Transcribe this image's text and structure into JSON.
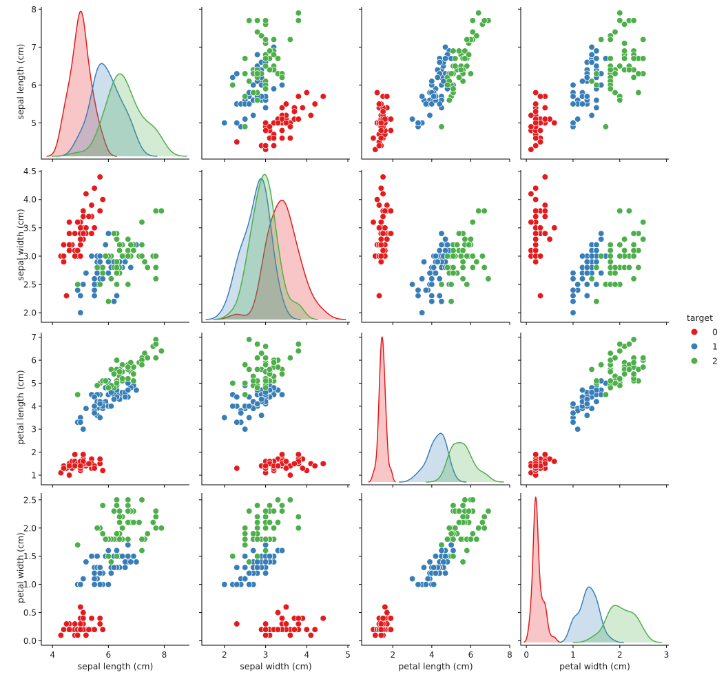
{
  "chart_data": {
    "type": "scatter",
    "title": "",
    "variables": [
      "sepal length (cm)",
      "sepal width (cm)",
      "petal length (cm)",
      "petal width (cm)"
    ],
    "diagonal": "kde",
    "hue": "target",
    "legend": {
      "title": "target",
      "placement": "right",
      "entries": [
        "0",
        "1",
        "2"
      ]
    },
    "palette": {
      "0": "#e41a1c",
      "1": "#377eb8",
      "2": "#4daf4a"
    },
    "axis_ranges": {
      "sepal length (cm)": [
        3.6,
        8.9
      ],
      "sepal width (cm)": [
        1.45,
        5.05
      ],
      "petal length (cm)": [
        0.4,
        8.0
      ],
      "petal width (cm)": [
        -0.12,
        3.05
      ]
    },
    "y_ranges": {
      "sepal length (cm)": [
        4.12,
        8.06
      ],
      "sepal width (cm)": [
        1.88,
        4.52
      ],
      "petal length (cm)": [
        0.7,
        7.2
      ],
      "petal width (cm)": [
        -0.03,
        2.62
      ]
    },
    "ticks": {
      "sepal length (cm)": {
        "x": [
          "4",
          "6",
          "8"
        ],
        "y": [
          "5",
          "6",
          "7",
          "8"
        ]
      },
      "sepal width (cm)": {
        "x": [
          "2",
          "3",
          "4",
          "5"
        ],
        "y": [
          "2.0",
          "2.5",
          "3.0",
          "3.5",
          "4.0",
          "4.5"
        ]
      },
      "petal length (cm)": {
        "x": [
          "2",
          "4",
          "6",
          "8"
        ],
        "y": [
          "1",
          "2",
          "3",
          "4",
          "5",
          "6",
          "7"
        ]
      },
      "petal width (cm)": {
        "x": [
          "0",
          "1",
          "2",
          "3"
        ],
        "y": [
          "0.0",
          "0.5",
          "1.0",
          "1.5",
          "2.0",
          "2.5"
        ]
      }
    },
    "series": [
      {
        "name": "0",
        "rows": [
          [
            5.1,
            3.5,
            1.4,
            0.2
          ],
          [
            4.9,
            3.0,
            1.4,
            0.2
          ],
          [
            4.7,
            3.2,
            1.3,
            0.2
          ],
          [
            4.6,
            3.1,
            1.5,
            0.2
          ],
          [
            5.0,
            3.6,
            1.4,
            0.2
          ],
          [
            5.4,
            3.9,
            1.7,
            0.4
          ],
          [
            4.6,
            3.4,
            1.4,
            0.3
          ],
          [
            5.0,
            3.4,
            1.5,
            0.2
          ],
          [
            4.4,
            2.9,
            1.4,
            0.2
          ],
          [
            4.9,
            3.1,
            1.5,
            0.1
          ],
          [
            5.4,
            3.7,
            1.5,
            0.2
          ],
          [
            4.8,
            3.4,
            1.6,
            0.2
          ],
          [
            4.8,
            3.0,
            1.4,
            0.1
          ],
          [
            4.3,
            3.0,
            1.1,
            0.1
          ],
          [
            5.8,
            4.0,
            1.2,
            0.2
          ],
          [
            5.7,
            4.4,
            1.5,
            0.4
          ],
          [
            5.4,
            3.9,
            1.3,
            0.4
          ],
          [
            5.1,
            3.5,
            1.4,
            0.3
          ],
          [
            5.7,
            3.8,
            1.7,
            0.3
          ],
          [
            5.1,
            3.8,
            1.5,
            0.3
          ],
          [
            5.4,
            3.4,
            1.7,
            0.2
          ],
          [
            5.1,
            3.7,
            1.5,
            0.4
          ],
          [
            4.6,
            3.6,
            1.0,
            0.2
          ],
          [
            5.1,
            3.3,
            1.7,
            0.5
          ],
          [
            4.8,
            3.4,
            1.9,
            0.2
          ],
          [
            5.0,
            3.0,
            1.6,
            0.2
          ],
          [
            5.0,
            3.4,
            1.6,
            0.4
          ],
          [
            5.2,
            3.5,
            1.5,
            0.2
          ],
          [
            5.2,
            3.4,
            1.4,
            0.2
          ],
          [
            4.7,
            3.2,
            1.6,
            0.2
          ],
          [
            4.8,
            3.1,
            1.6,
            0.2
          ],
          [
            5.4,
            3.4,
            1.5,
            0.4
          ],
          [
            5.2,
            4.1,
            1.5,
            0.1
          ],
          [
            5.5,
            4.2,
            1.4,
            0.2
          ],
          [
            4.9,
            3.1,
            1.5,
            0.2
          ],
          [
            5.0,
            3.2,
            1.2,
            0.2
          ],
          [
            5.5,
            3.5,
            1.3,
            0.2
          ],
          [
            4.9,
            3.6,
            1.4,
            0.1
          ],
          [
            4.4,
            3.0,
            1.3,
            0.2
          ],
          [
            5.1,
            3.4,
            1.5,
            0.2
          ],
          [
            5.0,
            3.5,
            1.3,
            0.3
          ],
          [
            4.5,
            2.3,
            1.3,
            0.3
          ],
          [
            4.4,
            3.2,
            1.3,
            0.2
          ],
          [
            5.0,
            3.5,
            1.6,
            0.6
          ],
          [
            5.1,
            3.8,
            1.9,
            0.4
          ],
          [
            4.8,
            3.0,
            1.4,
            0.3
          ],
          [
            5.1,
            3.8,
            1.6,
            0.2
          ],
          [
            4.6,
            3.2,
            1.4,
            0.2
          ],
          [
            5.3,
            3.7,
            1.5,
            0.2
          ],
          [
            5.0,
            3.3,
            1.4,
            0.2
          ]
        ]
      },
      {
        "name": "1",
        "rows": [
          [
            7.0,
            3.2,
            4.7,
            1.4
          ],
          [
            6.4,
            3.2,
            4.5,
            1.5
          ],
          [
            6.9,
            3.1,
            4.9,
            1.5
          ],
          [
            5.5,
            2.3,
            4.0,
            1.3
          ],
          [
            6.5,
            2.8,
            4.6,
            1.5
          ],
          [
            5.7,
            2.8,
            4.5,
            1.3
          ],
          [
            6.3,
            3.3,
            4.7,
            1.6
          ],
          [
            4.9,
            2.4,
            3.3,
            1.0
          ],
          [
            6.6,
            2.9,
            4.6,
            1.3
          ],
          [
            5.2,
            2.7,
            3.9,
            1.4
          ],
          [
            5.0,
            2.0,
            3.5,
            1.0
          ],
          [
            5.9,
            3.0,
            4.2,
            1.5
          ],
          [
            6.0,
            2.2,
            4.0,
            1.0
          ],
          [
            6.1,
            2.9,
            4.7,
            1.4
          ],
          [
            5.6,
            2.9,
            3.6,
            1.3
          ],
          [
            6.7,
            3.1,
            4.4,
            1.4
          ],
          [
            5.6,
            3.0,
            4.5,
            1.5
          ],
          [
            5.8,
            2.7,
            4.1,
            1.0
          ],
          [
            6.2,
            2.2,
            4.5,
            1.5
          ],
          [
            5.6,
            2.5,
            3.9,
            1.1
          ],
          [
            5.9,
            3.2,
            4.8,
            1.8
          ],
          [
            6.1,
            2.8,
            4.0,
            1.3
          ],
          [
            6.3,
            2.5,
            4.9,
            1.5
          ],
          [
            6.1,
            2.8,
            4.7,
            1.2
          ],
          [
            6.4,
            2.9,
            4.3,
            1.3
          ],
          [
            6.6,
            3.0,
            4.4,
            1.4
          ],
          [
            6.8,
            2.8,
            4.8,
            1.4
          ],
          [
            6.7,
            3.0,
            5.0,
            1.7
          ],
          [
            6.0,
            2.9,
            4.5,
            1.5
          ],
          [
            5.7,
            2.6,
            3.5,
            1.0
          ],
          [
            5.5,
            2.4,
            3.8,
            1.1
          ],
          [
            5.5,
            2.4,
            3.7,
            1.0
          ],
          [
            5.8,
            2.7,
            3.9,
            1.2
          ],
          [
            6.0,
            2.7,
            5.1,
            1.6
          ],
          [
            5.4,
            3.0,
            4.5,
            1.5
          ],
          [
            6.0,
            3.4,
            4.5,
            1.6
          ],
          [
            6.7,
            3.1,
            4.7,
            1.5
          ],
          [
            6.3,
            2.3,
            4.4,
            1.3
          ],
          [
            5.6,
            3.0,
            4.1,
            1.3
          ],
          [
            5.5,
            2.5,
            4.0,
            1.3
          ],
          [
            5.5,
            2.6,
            4.4,
            1.2
          ],
          [
            6.1,
            3.0,
            4.6,
            1.4
          ],
          [
            5.8,
            2.6,
            4.0,
            1.2
          ],
          [
            5.0,
            2.3,
            3.3,
            1.0
          ],
          [
            5.6,
            2.7,
            4.2,
            1.3
          ],
          [
            5.7,
            3.0,
            4.2,
            1.2
          ],
          [
            5.7,
            2.9,
            4.2,
            1.3
          ],
          [
            6.2,
            2.9,
            4.3,
            1.3
          ],
          [
            5.1,
            2.5,
            3.0,
            1.1
          ],
          [
            5.7,
            2.8,
            4.1,
            1.3
          ]
        ]
      },
      {
        "name": "2",
        "rows": [
          [
            6.3,
            3.3,
            6.0,
            2.5
          ],
          [
            5.8,
            2.7,
            5.1,
            1.9
          ],
          [
            7.1,
            3.0,
            5.9,
            2.1
          ],
          [
            6.3,
            2.9,
            5.6,
            1.8
          ],
          [
            6.5,
            3.0,
            5.8,
            2.2
          ],
          [
            7.6,
            3.0,
            6.6,
            2.1
          ],
          [
            4.9,
            2.5,
            4.5,
            1.7
          ],
          [
            7.3,
            2.9,
            6.3,
            1.8
          ],
          [
            6.7,
            2.5,
            5.8,
            1.8
          ],
          [
            7.2,
            3.6,
            6.1,
            2.5
          ],
          [
            6.5,
            3.2,
            5.1,
            2.0
          ],
          [
            6.4,
            2.7,
            5.3,
            1.9
          ],
          [
            6.8,
            3.0,
            5.5,
            2.1
          ],
          [
            5.7,
            2.5,
            5.0,
            2.0
          ],
          [
            5.8,
            2.8,
            5.1,
            2.4
          ],
          [
            6.4,
            3.2,
            5.3,
            2.3
          ],
          [
            6.5,
            3.0,
            5.5,
            1.8
          ],
          [
            7.7,
            3.8,
            6.7,
            2.2
          ],
          [
            7.7,
            2.6,
            6.9,
            2.3
          ],
          [
            6.0,
            2.2,
            5.0,
            1.5
          ],
          [
            6.9,
            3.2,
            5.7,
            2.3
          ],
          [
            5.6,
            2.8,
            4.9,
            2.0
          ],
          [
            7.7,
            2.8,
            6.7,
            2.0
          ],
          [
            6.3,
            2.7,
            4.9,
            1.8
          ],
          [
            6.7,
            3.3,
            5.7,
            2.1
          ],
          [
            7.2,
            3.2,
            6.0,
            1.8
          ],
          [
            6.2,
            2.8,
            4.8,
            1.8
          ],
          [
            6.1,
            3.0,
            4.9,
            1.8
          ],
          [
            6.4,
            2.8,
            5.6,
            2.1
          ],
          [
            7.2,
            3.0,
            5.8,
            1.6
          ],
          [
            7.4,
            2.8,
            6.1,
            1.9
          ],
          [
            7.9,
            3.8,
            6.4,
            2.0
          ],
          [
            6.4,
            2.8,
            5.6,
            2.2
          ],
          [
            6.3,
            2.8,
            5.1,
            1.5
          ],
          [
            6.1,
            2.6,
            5.6,
            1.4
          ],
          [
            7.7,
            3.0,
            6.1,
            2.3
          ],
          [
            6.3,
            3.4,
            5.6,
            2.4
          ],
          [
            6.4,
            3.1,
            5.5,
            1.8
          ],
          [
            6.0,
            3.0,
            4.8,
            1.8
          ],
          [
            6.9,
            3.1,
            5.4,
            2.1
          ],
          [
            6.7,
            3.1,
            5.6,
            2.4
          ],
          [
            6.9,
            3.1,
            5.1,
            2.3
          ],
          [
            5.8,
            2.7,
            5.1,
            1.9
          ],
          [
            6.8,
            3.2,
            5.9,
            2.3
          ],
          [
            6.7,
            3.3,
            5.7,
            2.5
          ],
          [
            6.7,
            3.0,
            5.2,
            2.3
          ],
          [
            6.3,
            2.5,
            5.0,
            1.9
          ],
          [
            6.5,
            3.0,
            5.2,
            2.0
          ],
          [
            6.2,
            3.4,
            5.4,
            2.3
          ],
          [
            5.9,
            3.0,
            5.1,
            1.8
          ]
        ]
      }
    ]
  }
}
